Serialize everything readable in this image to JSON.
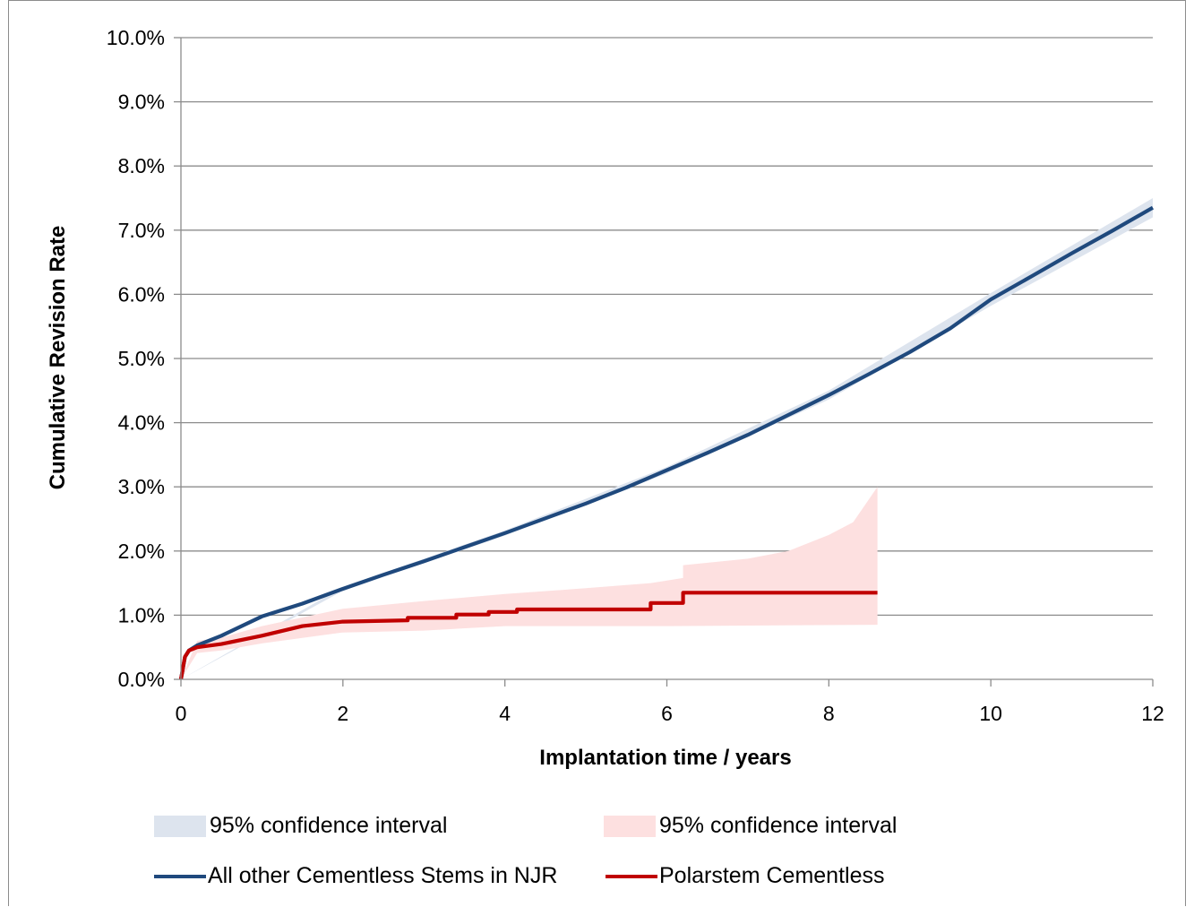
{
  "chart_data": {
    "type": "line",
    "title": "",
    "xlabel": "Implantation time  / years",
    "ylabel": "Cumulative Revision Rate",
    "xlim": [
      0,
      12
    ],
    "ylim": [
      0,
      0.1
    ],
    "x_ticks": [
      "0",
      "2",
      "4",
      "6",
      "8",
      "10",
      "12"
    ],
    "y_ticks": [
      "0.0%",
      "1.0%",
      "2.0%",
      "3.0%",
      "4.0%",
      "5.0%",
      "6.0%",
      "7.0%",
      "8.0%",
      "9.0%",
      "10.0%"
    ],
    "grid": "horizontal",
    "legend_position": "bottom",
    "series": [
      {
        "name": "All other Cementless Stems in NJR",
        "color": "#1f497d",
        "points": [
          [
            0,
            0
          ],
          [
            0.05,
            0.0035
          ],
          [
            0.1,
            0.0045
          ],
          [
            0.2,
            0.0053
          ],
          [
            0.5,
            0.0068
          ],
          [
            1,
            0.0098
          ],
          [
            1.5,
            0.0118
          ],
          [
            2,
            0.0141
          ],
          [
            2.5,
            0.0163
          ],
          [
            3,
            0.0184
          ],
          [
            3.5,
            0.0206
          ],
          [
            4,
            0.0228
          ],
          [
            4.5,
            0.0251
          ],
          [
            5,
            0.0274
          ],
          [
            5.5,
            0.0299
          ],
          [
            6,
            0.0326
          ],
          [
            6.5,
            0.0353
          ],
          [
            7,
            0.0381
          ],
          [
            7.5,
            0.0412
          ],
          [
            8,
            0.0443
          ],
          [
            8.5,
            0.0476
          ],
          [
            9,
            0.051
          ],
          [
            9.5,
            0.0547
          ],
          [
            10,
            0.0592
          ],
          [
            10.5,
            0.0628
          ],
          [
            11,
            0.0664
          ],
          [
            11.5,
            0.0699
          ],
          [
            12,
            0.0735
          ]
        ],
        "ci_name": "95% confidence interval",
        "ci_color": "#dde4ee",
        "ci_lower": [
          [
            0,
            0
          ],
          [
            2,
            0.0138
          ],
          [
            4,
            0.0224
          ],
          [
            6,
            0.0321
          ],
          [
            8,
            0.0436
          ],
          [
            10,
            0.0582
          ],
          [
            12,
            0.072
          ]
        ],
        "ci_upper": [
          [
            0,
            0
          ],
          [
            2,
            0.0144
          ],
          [
            4,
            0.0232
          ],
          [
            6,
            0.0331
          ],
          [
            8,
            0.045
          ],
          [
            10,
            0.0602
          ],
          [
            12,
            0.075
          ]
        ]
      },
      {
        "name": "Polarstem Cementless",
        "color": "#c00000",
        "points": [
          [
            0,
            0
          ],
          [
            0.05,
            0.0035
          ],
          [
            0.1,
            0.0045
          ],
          [
            0.2,
            0.005
          ],
          [
            0.5,
            0.0055
          ],
          [
            1,
            0.0068
          ],
          [
            1.5,
            0.0083
          ],
          [
            2,
            0.009
          ],
          [
            2.8,
            0.0092
          ],
          [
            2.8,
            0.0096
          ],
          [
            3.4,
            0.0096
          ],
          [
            3.4,
            0.0101
          ],
          [
            3.8,
            0.0101
          ],
          [
            3.8,
            0.0105
          ],
          [
            4.15,
            0.0105
          ],
          [
            4.15,
            0.0109
          ],
          [
            5.8,
            0.0109
          ],
          [
            5.8,
            0.0119
          ],
          [
            6.2,
            0.0119
          ],
          [
            6.2,
            0.0135
          ],
          [
            8.6,
            0.0135
          ]
        ],
        "ci_name": "95% confidence interval",
        "ci_color": "#fde0e0",
        "ci_lower": [
          [
            0,
            0
          ],
          [
            0.2,
            0.0041
          ],
          [
            0.5,
            0.0045
          ],
          [
            1,
            0.0056
          ],
          [
            2,
            0.0073
          ],
          [
            3,
            0.0076
          ],
          [
            4,
            0.0083
          ],
          [
            5,
            0.0083
          ],
          [
            6,
            0.0083
          ],
          [
            8.6,
            0.0085
          ]
        ],
        "ci_upper": [
          [
            0,
            0
          ],
          [
            0.2,
            0.006
          ],
          [
            0.5,
            0.0065
          ],
          [
            1,
            0.0083
          ],
          [
            2,
            0.011
          ],
          [
            3,
            0.0122
          ],
          [
            4,
            0.0133
          ],
          [
            5,
            0.0142
          ],
          [
            5.8,
            0.015
          ],
          [
            6.2,
            0.0158
          ],
          [
            6.2,
            0.0178
          ],
          [
            7,
            0.0188
          ],
          [
            7.5,
            0.02
          ],
          [
            8,
            0.0225
          ],
          [
            8.3,
            0.0245
          ],
          [
            8.6,
            0.03
          ]
        ]
      }
    ]
  }
}
